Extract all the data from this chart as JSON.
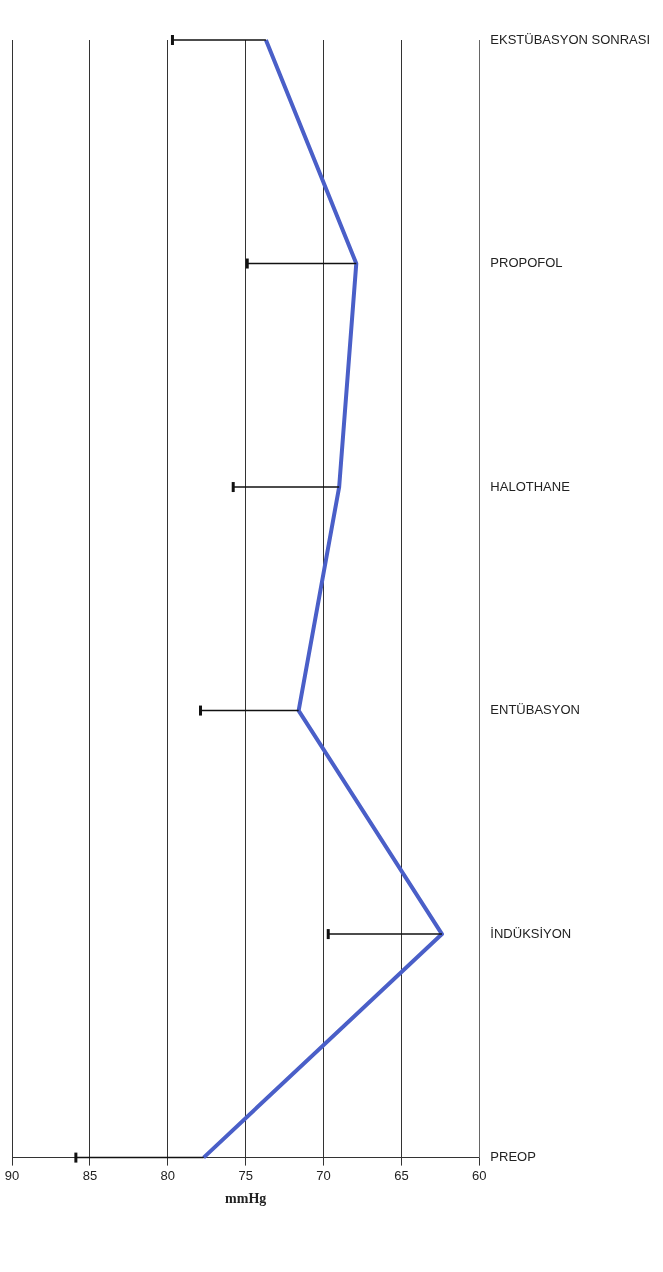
{
  "chart_data": {
    "type": "line",
    "orientation": "horizontal",
    "xlabel": "mmHg",
    "categories": [
      "EKSTÜBASYON SONRASI",
      "PROPOFOL",
      "HALOTHANE",
      "ENTÜBASYON",
      "İNDÜKSİYON",
      "PREOP"
    ],
    "series": [
      {
        "color": "#4a5fc8",
        "values": [
          73.7,
          67.9,
          69.0,
          71.6,
          62.4,
          77.7
        ],
        "errors": [
          [
            73.7,
            79.7
          ],
          [
            67.9,
            74.9
          ],
          [
            69.0,
            75.8
          ],
          [
            71.6,
            77.9
          ],
          [
            62.4,
            69.7
          ],
          [
            77.7,
            85.9
          ]
        ]
      }
    ],
    "xlim": [
      90,
      60
    ],
    "xticks": [
      60,
      65,
      70,
      75,
      80,
      85,
      90
    ],
    "grid": "x",
    "legend": false,
    "marker": "none",
    "line_style": "solid"
  }
}
